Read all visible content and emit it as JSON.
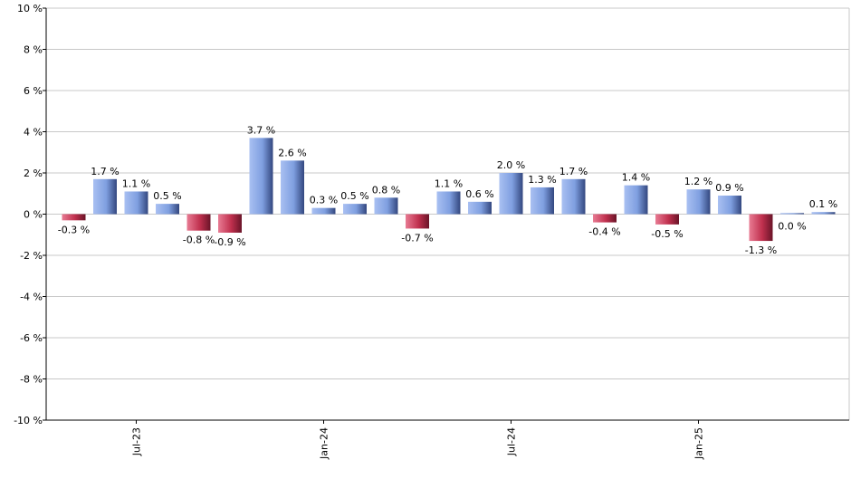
{
  "chart_data": {
    "type": "bar",
    "title": "",
    "xlabel": "",
    "ylabel": "",
    "ylim": [
      -10,
      10
    ],
    "y_ticks": [
      10,
      8,
      6,
      4,
      2,
      0,
      -2,
      -4,
      -6,
      -8,
      -10
    ],
    "y_tick_labels": [
      "10 %",
      "8 %",
      "6 %",
      "4 %",
      "2 %",
      "0 %",
      "-2 %",
      "-4 %",
      "-6 %",
      "-8 %",
      "-10 %"
    ],
    "grid": true,
    "x_tick_labels": [
      {
        "index": 2,
        "label": "Jul-23"
      },
      {
        "index": 8,
        "label": "Jan-24"
      },
      {
        "index": 14,
        "label": "Jul-24"
      },
      {
        "index": 20,
        "label": "Jan-25"
      }
    ],
    "values": [
      -0.3,
      1.7,
      1.1,
      0.5,
      -0.8,
      -0.9,
      3.7,
      2.6,
      0.3,
      0.5,
      0.8,
      -0.7,
      1.1,
      0.6,
      2.0,
      1.3,
      1.7,
      -0.4,
      1.4,
      -0.5,
      1.2,
      0.9,
      -1.3,
      0.0,
      0.1
    ],
    "value_labels": [
      "-0.3 %",
      "1.7 %",
      "1.1 %",
      "0.5 %",
      "-0.8 %",
      "-0.9 %",
      "3.7 %",
      "2.6 %",
      "0.3 %",
      "0.5 %",
      "0.8 %",
      "-0.7 %",
      "1.1 %",
      "0.6 %",
      "2.0 %",
      "1.3 %",
      "1.7 %",
      "-0.4 %",
      "1.4 %",
      "-0.5 %",
      "1.2 %",
      "0.9 %",
      "-1.3 %",
      "0.0 %",
      "0.1 %"
    ],
    "colors": {
      "positive": "#7f9fe0",
      "negative": "#c0304e",
      "grid": "#c8c8c8",
      "axis": "#000000"
    }
  }
}
